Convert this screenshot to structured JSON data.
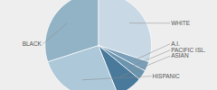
{
  "chart_data": {
    "type": "pie",
    "categories": [
      "WHITE",
      "A.I.",
      "PACIFIC ISL.",
      "ASIAN",
      "HISPANIC",
      "BLACK"
    ],
    "values": [
      30,
      3,
      3,
      8,
      26,
      30
    ],
    "colors": [
      "#c8d8e4",
      "#7a9fb8",
      "#6b94ae",
      "#4a7a9b",
      "#adc8d8",
      "#92b3c5"
    ]
  }
}
